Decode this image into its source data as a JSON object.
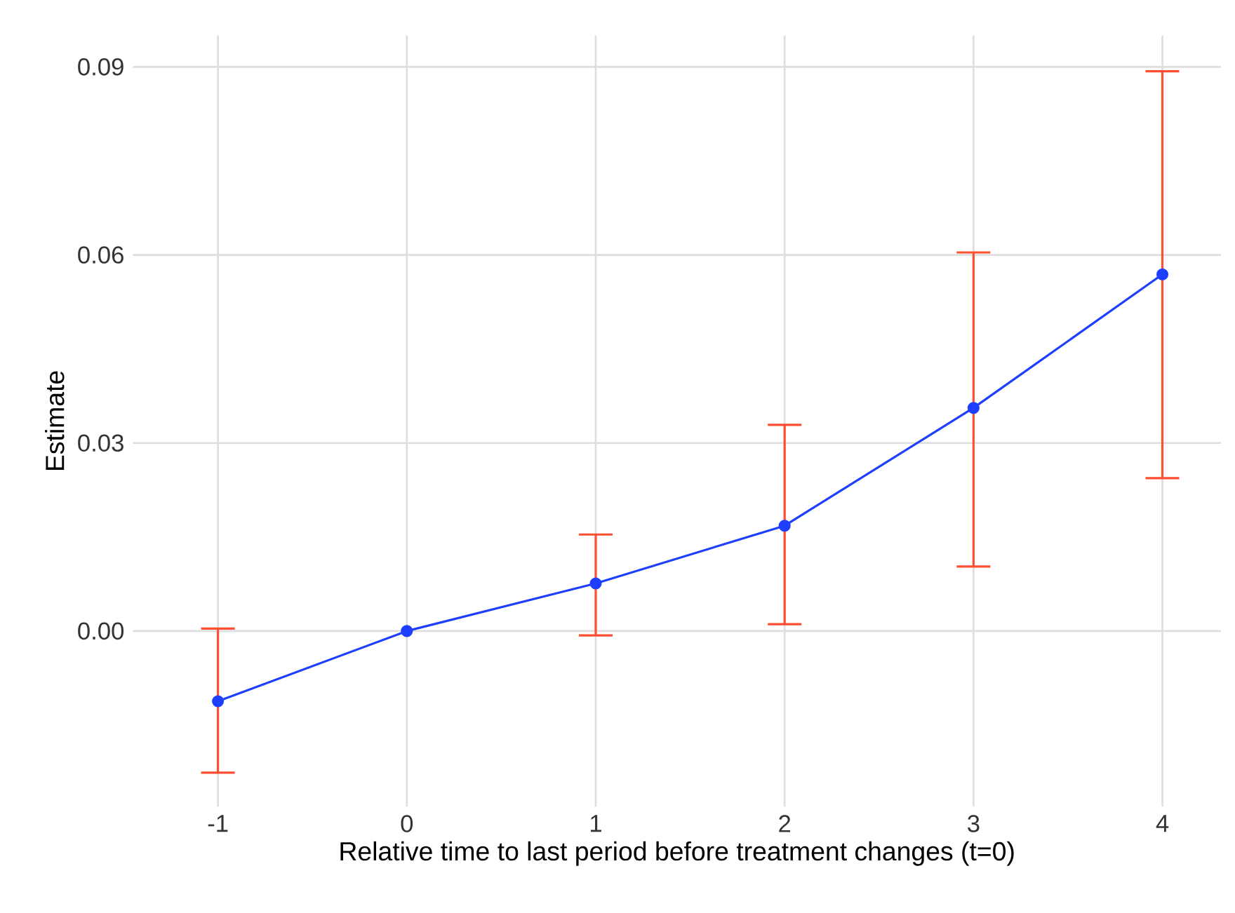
{
  "chart_data": {
    "type": "line",
    "xlabel": "Relative time to last period before treatment changes (t=0)",
    "ylabel": "Estimate",
    "x": [
      -1,
      0,
      1,
      2,
      3,
      4
    ],
    "series": [
      {
        "color": "#1f3fff",
        "values": [
          -0.0112,
          0,
          0.0076,
          0.0168,
          0.0356,
          0.0569
        ],
        "errors": [
          [
            -0.0226,
            0.0004
          ],
          null,
          [
            -0.0007,
            0.0154
          ],
          [
            0.0011,
            0.0329
          ],
          [
            0.0103,
            0.0604
          ],
          [
            0.0244,
            0.0893
          ]
        ]
      }
    ],
    "xlim": [
      -1.45,
      4.31
    ],
    "ylim": [
      -0.028,
      0.095
    ],
    "xticks": [
      -1,
      0,
      1,
      2,
      3,
      4
    ],
    "yticks": [
      {
        "value": 0,
        "label": "0.00"
      },
      0.03,
      0.06,
      0.09
    ],
    "grid": true,
    "marker": "circle",
    "line_style": "solid"
  }
}
